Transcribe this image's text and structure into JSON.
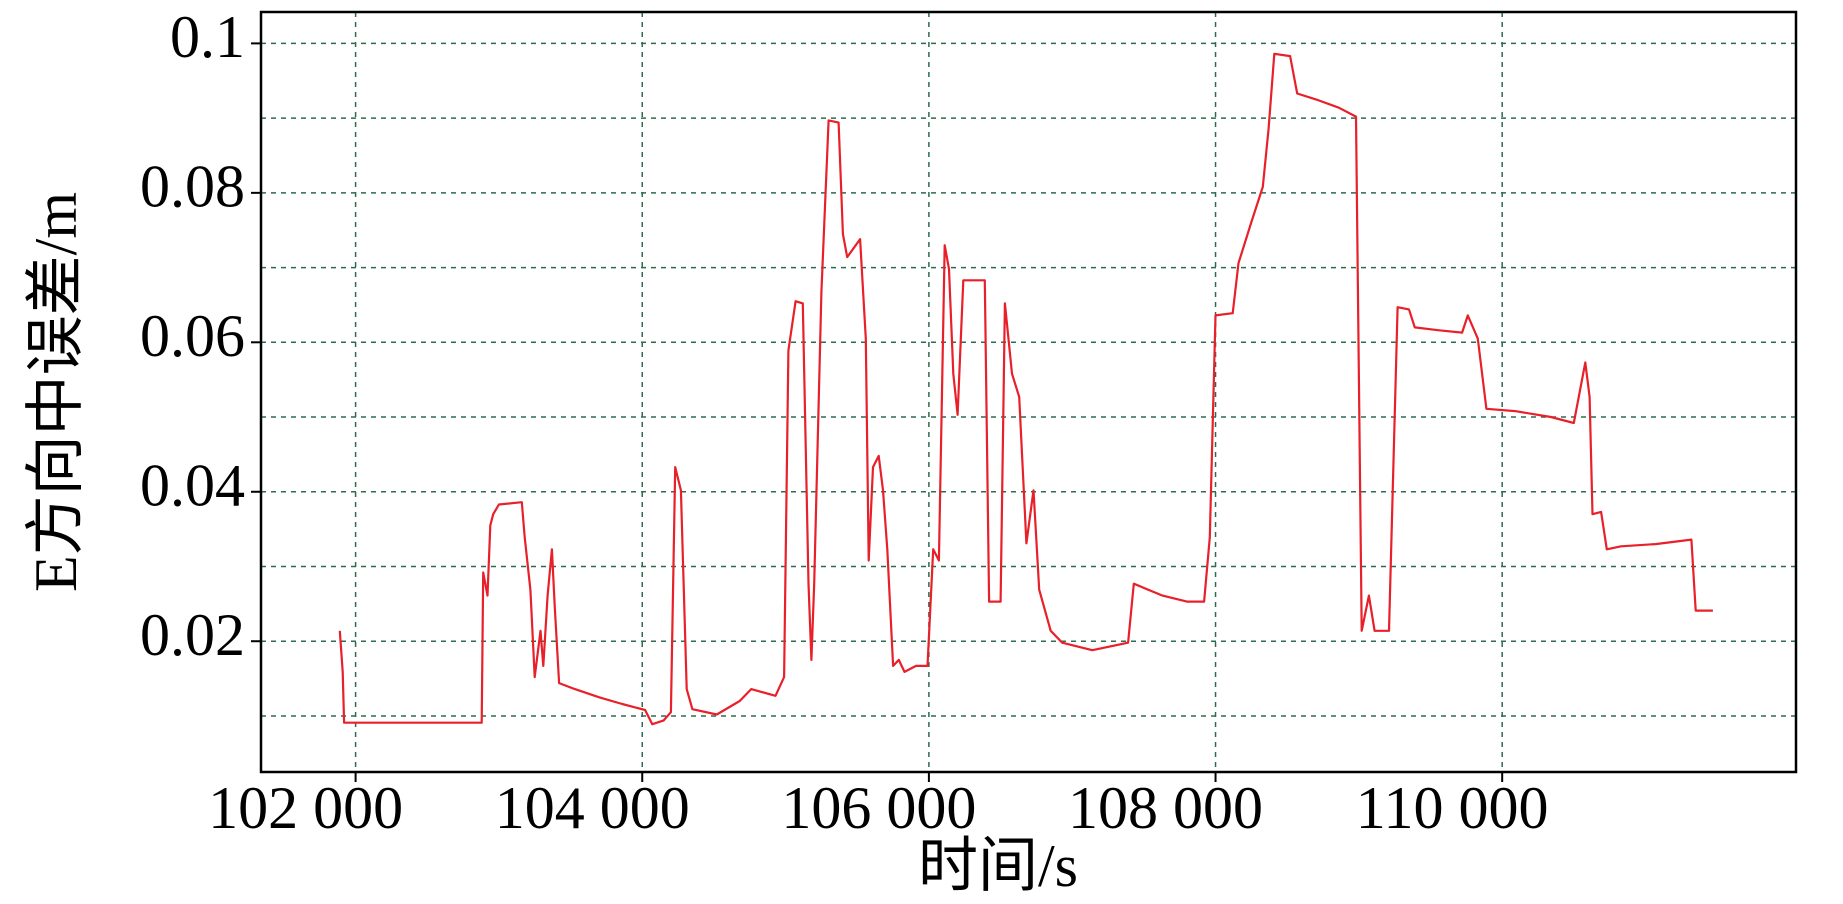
{
  "chart_data": {
    "type": "line",
    "x_label": "时间/s",
    "y_label": "E方向中误差/m",
    "color": "#e8202a",
    "grid": true,
    "xlim": [
      101340,
      112050
    ],
    "ylim": [
      0.0025,
      0.1042
    ],
    "xticks": [
      {
        "value": 102000,
        "label": "102 000"
      },
      {
        "value": 104000,
        "label": "104 000"
      },
      {
        "value": 106000,
        "label": "106 000"
      },
      {
        "value": 108000,
        "label": "108 000"
      },
      {
        "value": 110000,
        "label": "110 000"
      }
    ],
    "yticks": [
      0.02,
      0.04,
      0.06,
      0.08,
      0.1
    ],
    "yminor_ticks": [
      0.01,
      0.03,
      0.05,
      0.07,
      0.09
    ],
    "x": [
      101890,
      101910,
      101920,
      102880,
      102890,
      102920,
      102940,
      102960,
      103000,
      103160,
      103180,
      103220,
      103250,
      103290,
      103310,
      103340,
      103370,
      103390,
      103420,
      103530,
      103700,
      103860,
      104020,
      104070,
      104150,
      104200,
      104230,
      104270,
      104310,
      104350,
      104520,
      104680,
      104760,
      104930,
      104990,
      105020,
      105070,
      105120,
      105160,
      105180,
      105200,
      105250,
      105300,
      105370,
      105400,
      105430,
      105520,
      105560,
      105580,
      105610,
      105650,
      105680,
      105710,
      105750,
      105790,
      105830,
      105910,
      105990,
      106030,
      106070,
      106110,
      106140,
      106170,
      106200,
      106240,
      106390,
      106420,
      106500,
      106530,
      106580,
      106630,
      106680,
      106730,
      106770,
      106850,
      106930,
      107140,
      107390,
      107430,
      107630,
      107800,
      107920,
      107960,
      108000,
      108120,
      108160,
      108250,
      108330,
      108370,
      108410,
      108520,
      108570,
      108700,
      108860,
      108980,
      109020,
      109070,
      109110,
      109210,
      109270,
      109350,
      109390,
      109560,
      109720,
      109760,
      109830,
      109890,
      110090,
      110340,
      110500,
      110580,
      110610,
      110630,
      110690,
      110730,
      110830,
      111070,
      111320,
      111350,
      111470
    ],
    "values": [
      0.0214,
      0.0159,
      0.0091,
      0.0091,
      0.0292,
      0.0261,
      0.0355,
      0.037,
      0.0383,
      0.0386,
      0.0339,
      0.0269,
      0.0152,
      0.0214,
      0.0167,
      0.0261,
      0.0323,
      0.0245,
      0.0144,
      0.0136,
      0.0125,
      0.0116,
      0.0108,
      0.0089,
      0.0094,
      0.0105,
      0.0433,
      0.0402,
      0.0136,
      0.0109,
      0.0102,
      0.012,
      0.0136,
      0.0127,
      0.0152,
      0.0589,
      0.0655,
      0.0652,
      0.0277,
      0.0175,
      0.0277,
      0.0667,
      0.0897,
      0.0894,
      0.0745,
      0.0714,
      0.0738,
      0.0605,
      0.0308,
      0.0433,
      0.0448,
      0.0402,
      0.0323,
      0.0167,
      0.0175,
      0.0159,
      0.0167,
      0.0167,
      0.0323,
      0.0308,
      0.073,
      0.0698,
      0.0558,
      0.0503,
      0.0683,
      0.0683,
      0.0253,
      0.0253,
      0.0652,
      0.0558,
      0.0527,
      0.0331,
      0.0402,
      0.0269,
      0.0214,
      0.0198,
      0.0188,
      0.0198,
      0.0277,
      0.0261,
      0.0253,
      0.0253,
      0.0339,
      0.0636,
      0.0639,
      0.0706,
      0.0761,
      0.0808,
      0.0886,
      0.0986,
      0.0983,
      0.0933,
      0.0925,
      0.0914,
      0.0902,
      0.0214,
      0.0261,
      0.0214,
      0.0214,
      0.0647,
      0.0644,
      0.062,
      0.0616,
      0.0613,
      0.0636,
      0.0605,
      0.0511,
      0.0508,
      0.05,
      0.0492,
      0.0573,
      0.0527,
      0.037,
      0.0373,
      0.0323,
      0.0327,
      0.033,
      0.0336,
      0.0241,
      0.0241
    ]
  }
}
